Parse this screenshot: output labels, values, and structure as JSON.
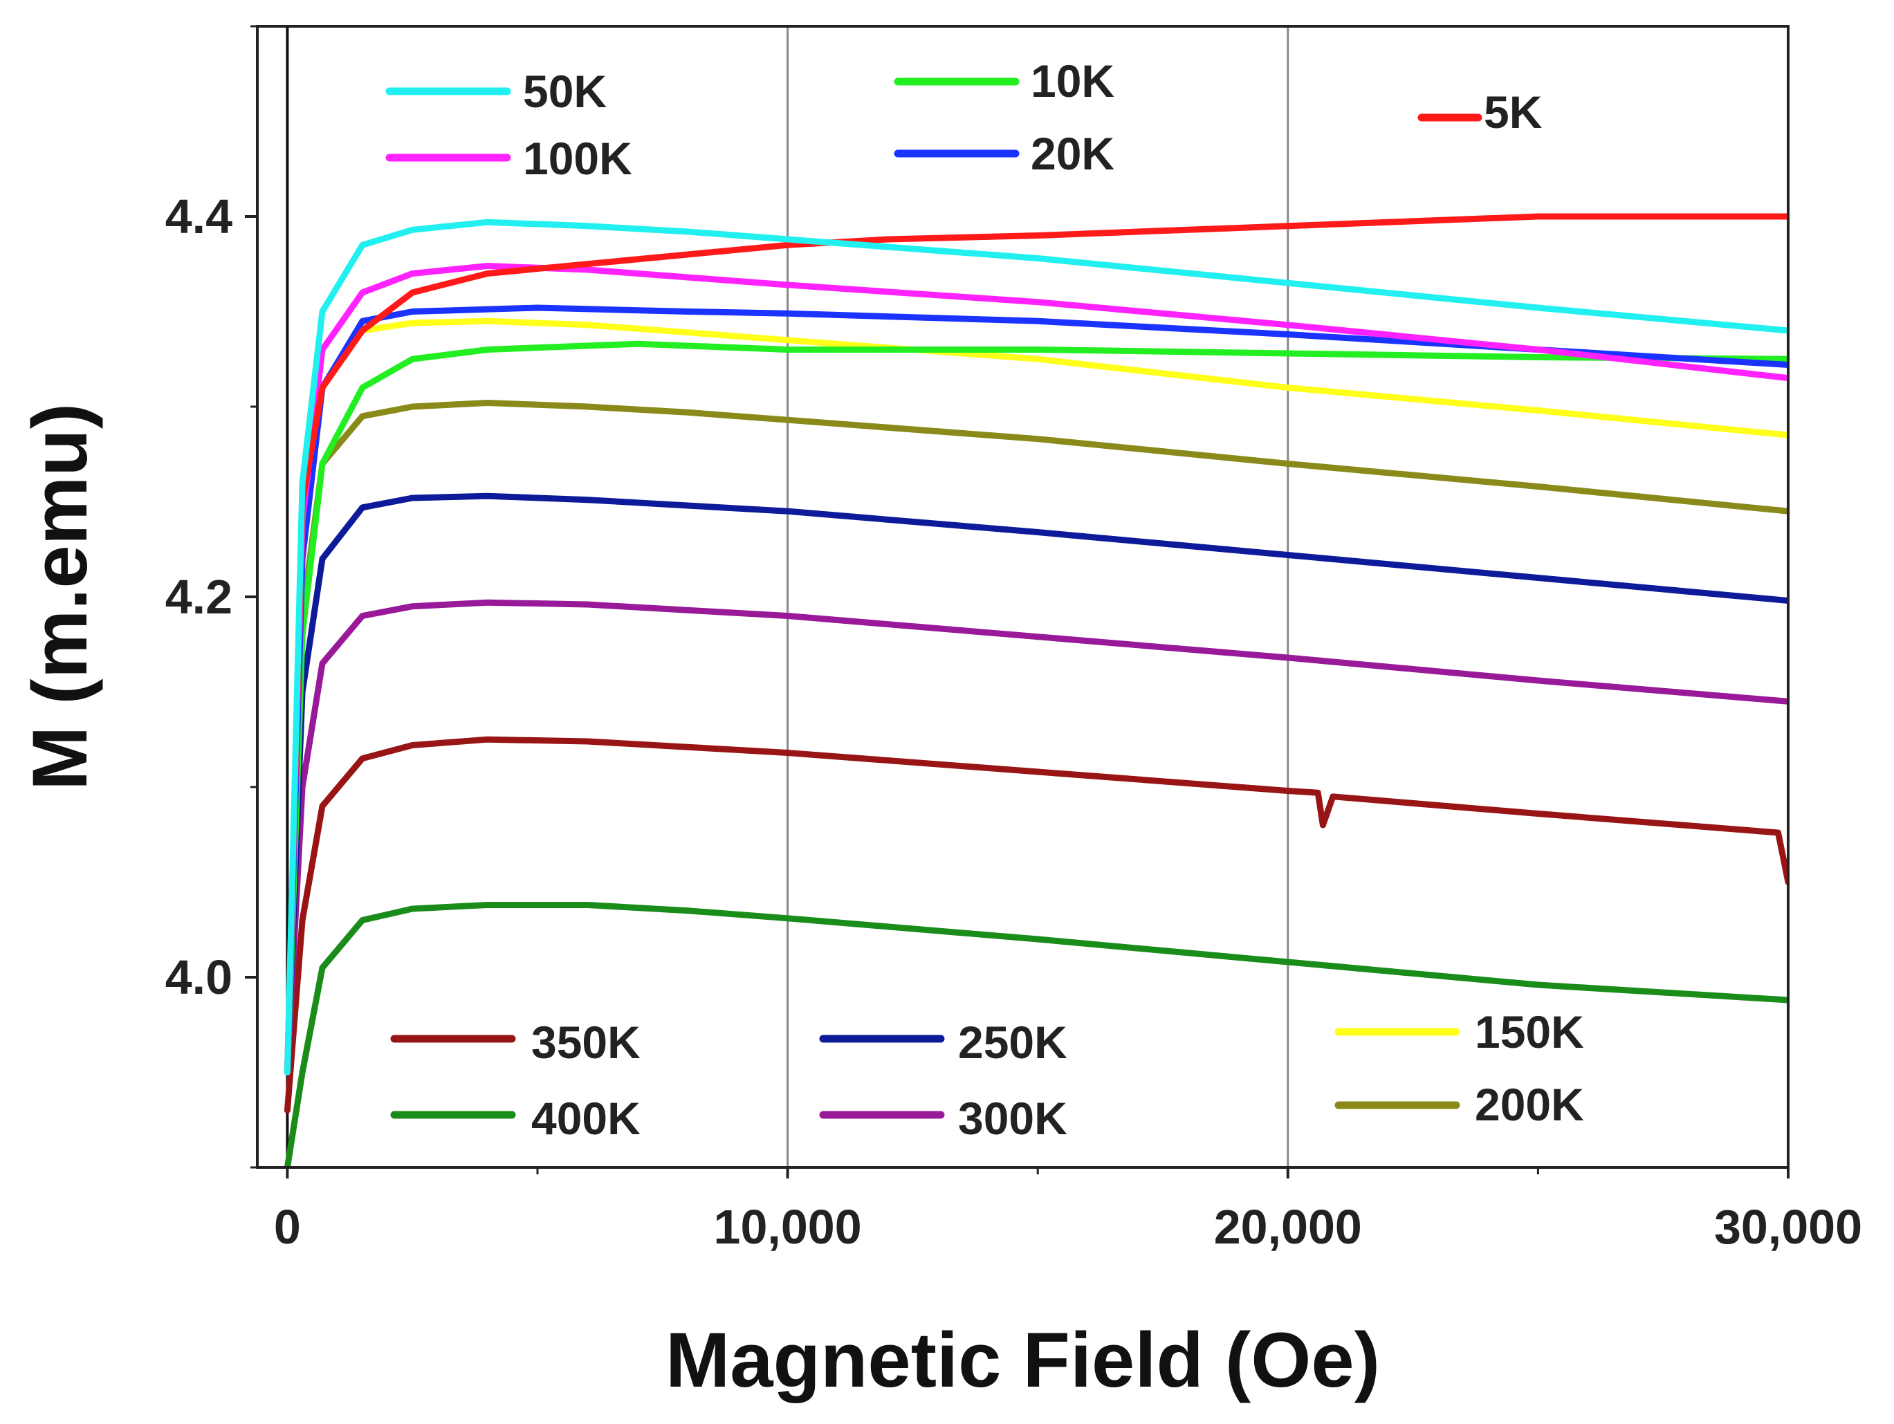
{
  "chart_data": {
    "type": "line",
    "title": "",
    "xlabel": "Magnetic Field (Oe)",
    "ylabel": "M (m.emu)",
    "xlim": [
      -600,
      30000
    ],
    "ylim": [
      3.9,
      4.5
    ],
    "xticks": [
      0,
      10000,
      20000,
      30000
    ],
    "xtick_labels": [
      "0",
      "10,000",
      "20,000",
      "30,000"
    ],
    "yticks": [
      4.0,
      4.2,
      4.4
    ],
    "ytick_labels": [
      "4.0",
      "4.2",
      "4.4"
    ],
    "grid": "vertical lines at 10000 and 20000 Oe",
    "legend_placement": "inside, top and bottom",
    "series": [
      {
        "name": "5K",
        "color": "#ff1a1a",
        "points": [
          [
            0,
            3.95
          ],
          [
            300,
            4.25
          ],
          [
            700,
            4.31
          ],
          [
            1500,
            4.34
          ],
          [
            2500,
            4.36
          ],
          [
            4000,
            4.37
          ],
          [
            6000,
            4.375
          ],
          [
            8000,
            4.38
          ],
          [
            10000,
            4.385
          ],
          [
            12000,
            4.388
          ],
          [
            15000,
            4.39
          ],
          [
            20000,
            4.395
          ],
          [
            25000,
            4.4
          ],
          [
            30000,
            4.4
          ]
        ]
      },
      {
        "name": "10K",
        "color": "#22ee22",
        "points": [
          [
            0,
            3.95
          ],
          [
            300,
            4.18
          ],
          [
            700,
            4.27
          ],
          [
            1500,
            4.31
          ],
          [
            2500,
            4.325
          ],
          [
            4000,
            4.33
          ],
          [
            7000,
            4.333
          ],
          [
            10000,
            4.33
          ],
          [
            15000,
            4.33
          ],
          [
            20000,
            4.328
          ],
          [
            25000,
            4.326
          ],
          [
            30000,
            4.325
          ]
        ]
      },
      {
        "name": "20K",
        "color": "#1a33ff",
        "points": [
          [
            0,
            3.95
          ],
          [
            300,
            4.22
          ],
          [
            700,
            4.31
          ],
          [
            1500,
            4.345
          ],
          [
            2500,
            4.35
          ],
          [
            5000,
            4.352
          ],
          [
            8000,
            4.35
          ],
          [
            10000,
            4.349
          ],
          [
            15000,
            4.345
          ],
          [
            20000,
            4.338
          ],
          [
            25000,
            4.33
          ],
          [
            30000,
            4.322
          ]
        ]
      },
      {
        "name": "50K",
        "color": "#22f0f0",
        "points": [
          [
            0,
            3.95
          ],
          [
            300,
            4.26
          ],
          [
            700,
            4.35
          ],
          [
            1500,
            4.385
          ],
          [
            2500,
            4.393
          ],
          [
            4000,
            4.397
          ],
          [
            6000,
            4.395
          ],
          [
            8000,
            4.392
          ],
          [
            10000,
            4.388
          ],
          [
            15000,
            4.378
          ],
          [
            20000,
            4.365
          ],
          [
            25000,
            4.352
          ],
          [
            30000,
            4.34
          ]
        ]
      },
      {
        "name": "100K",
        "color": "#ff22ff",
        "points": [
          [
            0,
            3.95
          ],
          [
            300,
            4.24
          ],
          [
            700,
            4.33
          ],
          [
            1500,
            4.36
          ],
          [
            2500,
            4.37
          ],
          [
            4000,
            4.374
          ],
          [
            6000,
            4.372
          ],
          [
            8000,
            4.368
          ],
          [
            10000,
            4.364
          ],
          [
            15000,
            4.355
          ],
          [
            20000,
            4.343
          ],
          [
            25000,
            4.33
          ],
          [
            30000,
            4.315
          ]
        ]
      },
      {
        "name": "150K",
        "color": "#ffff1a",
        "points": [
          [
            0,
            3.95
          ],
          [
            300,
            4.22
          ],
          [
            700,
            4.31
          ],
          [
            1500,
            4.34
          ],
          [
            2500,
            4.344
          ],
          [
            4000,
            4.345
          ],
          [
            6000,
            4.343
          ],
          [
            8000,
            4.339
          ],
          [
            10000,
            4.335
          ],
          [
            15000,
            4.325
          ],
          [
            20000,
            4.31
          ],
          [
            25000,
            4.298
          ],
          [
            30000,
            4.285
          ]
        ]
      },
      {
        "name": "200K",
        "color": "#8a8a1a",
        "points": [
          [
            0,
            3.95
          ],
          [
            300,
            4.19
          ],
          [
            700,
            4.27
          ],
          [
            1500,
            4.295
          ],
          [
            2500,
            4.3
          ],
          [
            4000,
            4.302
          ],
          [
            6000,
            4.3
          ],
          [
            8000,
            4.297
          ],
          [
            10000,
            4.293
          ],
          [
            15000,
            4.283
          ],
          [
            20000,
            4.27
          ],
          [
            25000,
            4.258
          ],
          [
            30000,
            4.245
          ]
        ]
      },
      {
        "name": "250K",
        "color": "#0d1a99",
        "points": [
          [
            0,
            3.95
          ],
          [
            300,
            4.15
          ],
          [
            700,
            4.22
          ],
          [
            1500,
            4.247
          ],
          [
            2500,
            4.252
          ],
          [
            4000,
            4.253
          ],
          [
            6000,
            4.251
          ],
          [
            8000,
            4.248
          ],
          [
            10000,
            4.245
          ],
          [
            15000,
            4.234
          ],
          [
            20000,
            4.222
          ],
          [
            25000,
            4.21
          ],
          [
            30000,
            4.198
          ]
        ]
      },
      {
        "name": "300K",
        "color": "#991a99",
        "points": [
          [
            0,
            3.95
          ],
          [
            300,
            4.1
          ],
          [
            700,
            4.165
          ],
          [
            1500,
            4.19
          ],
          [
            2500,
            4.195
          ],
          [
            4000,
            4.197
          ],
          [
            6000,
            4.196
          ],
          [
            8000,
            4.193
          ],
          [
            10000,
            4.19
          ],
          [
            15000,
            4.179
          ],
          [
            20000,
            4.168
          ],
          [
            25000,
            4.156
          ],
          [
            30000,
            4.145
          ]
        ]
      },
      {
        "name": "350K",
        "color": "#991414",
        "points": [
          [
            0,
            3.93
          ],
          [
            300,
            4.03
          ],
          [
            700,
            4.09
          ],
          [
            1500,
            4.115
          ],
          [
            2500,
            4.122
          ],
          [
            4000,
            4.125
          ],
          [
            6000,
            4.124
          ],
          [
            8000,
            4.121
          ],
          [
            10000,
            4.118
          ],
          [
            15000,
            4.108
          ],
          [
            20000,
            4.098
          ],
          [
            20600,
            4.097
          ],
          [
            20700,
            4.08
          ],
          [
            20900,
            4.095
          ],
          [
            25000,
            4.086
          ],
          [
            29800,
            4.076
          ],
          [
            30000,
            4.05
          ]
        ]
      },
      {
        "name": "400K",
        "color": "#1a8c1a",
        "points": [
          [
            0,
            3.9
          ],
          [
            300,
            3.95
          ],
          [
            700,
            4.005
          ],
          [
            1500,
            4.03
          ],
          [
            2500,
            4.036
          ],
          [
            4000,
            4.038
          ],
          [
            6000,
            4.038
          ],
          [
            8000,
            4.035
          ],
          [
            10000,
            4.031
          ],
          [
            15000,
            4.02
          ],
          [
            20000,
            4.008
          ],
          [
            25000,
            3.996
          ],
          [
            30000,
            3.988
          ]
        ]
      }
    ],
    "legend": {
      "entries": [
        "50K",
        "100K",
        "10K",
        "20K",
        "5K",
        "350K",
        "400K",
        "250K",
        "300K",
        "150K",
        "200K"
      ]
    }
  }
}
